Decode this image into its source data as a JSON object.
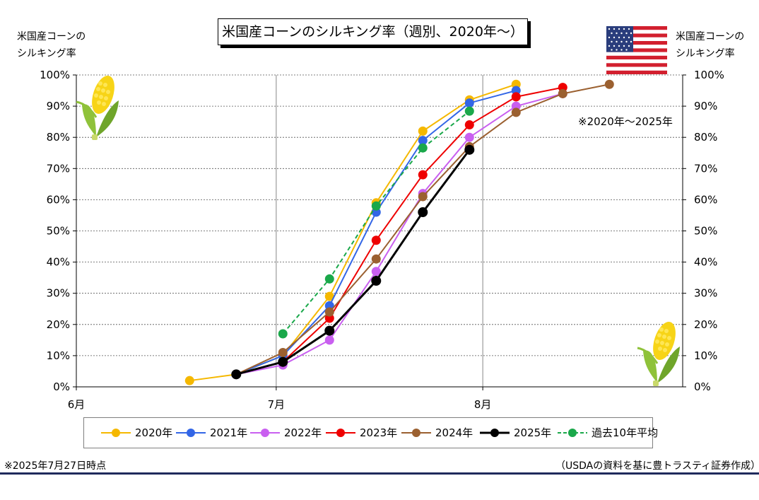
{
  "title": "米国産コーンのシルキング率（週別、2020年～）",
  "left_axis_title": [
    "米国産コーンの",
    "シルキング率"
  ],
  "right_axis_title": [
    "米国産コーンの",
    "シルキング率"
  ],
  "note": "※2020年～2025年",
  "footer_left": "※2025年7月27日時点",
  "footer_right": "（USDAの資料を基に豊トラスティ証券作成）",
  "chart_data": {
    "type": "line",
    "x_ticks": [
      {
        "date": "2000-06-01",
        "label": "6月"
      },
      {
        "date": "2000-07-01",
        "label": "7月"
      },
      {
        "date": "2000-08-01",
        "label": "8月"
      }
    ],
    "x_range": [
      "2000-06-01",
      "2000-08-31"
    ],
    "y_range": [
      0,
      100
    ],
    "y_ticks": [
      0,
      10,
      20,
      30,
      40,
      50,
      60,
      70,
      80,
      90,
      100
    ],
    "y_tick_labels": [
      "0%",
      "10%",
      "20%",
      "30%",
      "40%",
      "50%",
      "60%",
      "70%",
      "80%",
      "90%",
      "100%"
    ],
    "right_y_tick_labels": [
      "0%",
      "10%",
      "20%",
      "30%",
      "40%",
      "50%",
      "60%",
      "70%",
      "80%",
      "90%",
      "100%"
    ],
    "grid": {
      "horizontal": true,
      "vertical": true
    },
    "legend_position": "bottom",
    "series": [
      {
        "name": "2020年",
        "color": "#f5b800",
        "dashed": false,
        "bold": false,
        "points": [
          [
            "2000-06-18",
            2
          ],
          [
            "2000-06-25",
            4
          ],
          [
            "2000-07-02",
            10
          ],
          [
            "2000-07-09",
            29
          ],
          [
            "2000-07-16",
            59
          ],
          [
            "2000-07-23",
            82
          ],
          [
            "2000-07-30",
            92
          ],
          [
            "2000-08-06",
            97
          ]
        ]
      },
      {
        "name": "2021年",
        "color": "#3366e6",
        "dashed": false,
        "bold": false,
        "points": [
          [
            "2000-06-25",
            4
          ],
          [
            "2000-07-02",
            10
          ],
          [
            "2000-07-09",
            26
          ],
          [
            "2000-07-16",
            56
          ],
          [
            "2000-07-23",
            79
          ],
          [
            "2000-07-30",
            91
          ],
          [
            "2000-08-06",
            95
          ]
        ]
      },
      {
        "name": "2022年",
        "color": "#c95ff0",
        "dashed": false,
        "bold": false,
        "points": [
          [
            "2000-06-25",
            4
          ],
          [
            "2000-07-02",
            7
          ],
          [
            "2000-07-09",
            15
          ],
          [
            "2000-07-16",
            37
          ],
          [
            "2000-07-23",
            62
          ],
          [
            "2000-07-30",
            80
          ],
          [
            "2000-08-06",
            90
          ],
          [
            "2000-08-13",
            94
          ]
        ]
      },
      {
        "name": "2023年",
        "color": "#ee0000",
        "dashed": false,
        "bold": false,
        "points": [
          [
            "2000-06-25",
            4
          ],
          [
            "2000-07-02",
            8
          ],
          [
            "2000-07-09",
            22
          ],
          [
            "2000-07-16",
            47
          ],
          [
            "2000-07-23",
            68
          ],
          [
            "2000-07-30",
            84
          ],
          [
            "2000-08-06",
            93
          ],
          [
            "2000-08-13",
            96
          ]
        ]
      },
      {
        "name": "2024年",
        "color": "#9b6030",
        "dashed": false,
        "bold": false,
        "points": [
          [
            "2000-06-25",
            4
          ],
          [
            "2000-07-02",
            11
          ],
          [
            "2000-07-09",
            24
          ],
          [
            "2000-07-16",
            41
          ],
          [
            "2000-07-23",
            61
          ],
          [
            "2000-07-30",
            77
          ],
          [
            "2000-08-06",
            88
          ],
          [
            "2000-08-13",
            94
          ],
          [
            "2000-08-20",
            97
          ]
        ]
      },
      {
        "name": "2025年",
        "color": "#000000",
        "dashed": false,
        "bold": true,
        "points": [
          [
            "2000-06-25",
            4
          ],
          [
            "2000-07-02",
            8
          ],
          [
            "2000-07-09",
            18
          ],
          [
            "2000-07-16",
            34
          ],
          [
            "2000-07-23",
            56
          ],
          [
            "2000-07-30",
            76
          ]
        ]
      },
      {
        "name": "過去10年平均",
        "color": "#1aa84a",
        "dashed": true,
        "bold": false,
        "points": [
          [
            "2000-07-02",
            17
          ],
          [
            "2000-07-09",
            34.6
          ],
          [
            "2000-07-16",
            58
          ],
          [
            "2000-07-23",
            76.6
          ],
          [
            "2000-07-30",
            88.4
          ]
        ]
      }
    ]
  }
}
